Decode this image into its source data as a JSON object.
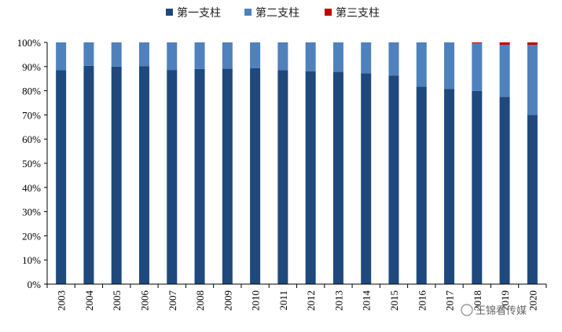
{
  "chart_data": {
    "type": "bar",
    "stacked": true,
    "categories": [
      "2003",
      "2004",
      "2005",
      "2006",
      "2007",
      "2008",
      "2009",
      "2010",
      "2011",
      "2012",
      "2013",
      "2014",
      "2015",
      "2016",
      "2017",
      "2018",
      "2019",
      "2020"
    ],
    "series": [
      {
        "name": "第一支柱",
        "color": "#1f497d",
        "values": [
          88.5,
          90.3,
          90.0,
          90.1,
          88.6,
          89.0,
          89.1,
          89.3,
          88.5,
          88.0,
          87.8,
          87.2,
          86.2,
          81.7,
          80.7,
          79.9,
          77.5,
          70.0
        ]
      },
      {
        "name": "第二支柱",
        "color": "#4f81bd",
        "values": [
          11.5,
          9.7,
          10.0,
          9.9,
          11.4,
          11.0,
          10.9,
          10.7,
          11.5,
          12.0,
          12.2,
          12.8,
          13.8,
          18.3,
          19.3,
          19.8,
          21.5,
          29.0
        ]
      },
      {
        "name": "第三支柱",
        "color": "#c00000",
        "values": [
          0,
          0,
          0,
          0,
          0,
          0,
          0,
          0,
          0,
          0,
          0,
          0,
          0,
          0,
          0,
          0.3,
          1.0,
          1.0
        ]
      }
    ],
    "ylim": [
      0,
      100
    ],
    "yticks": [
      "0%",
      "10%",
      "20%",
      "30%",
      "40%",
      "50%",
      "60%",
      "70%",
      "80%",
      "90%",
      "100%"
    ],
    "grid": false,
    "legend_position": "top",
    "xlabel": "",
    "ylabel": ""
  },
  "watermark": "王锦看传媒"
}
